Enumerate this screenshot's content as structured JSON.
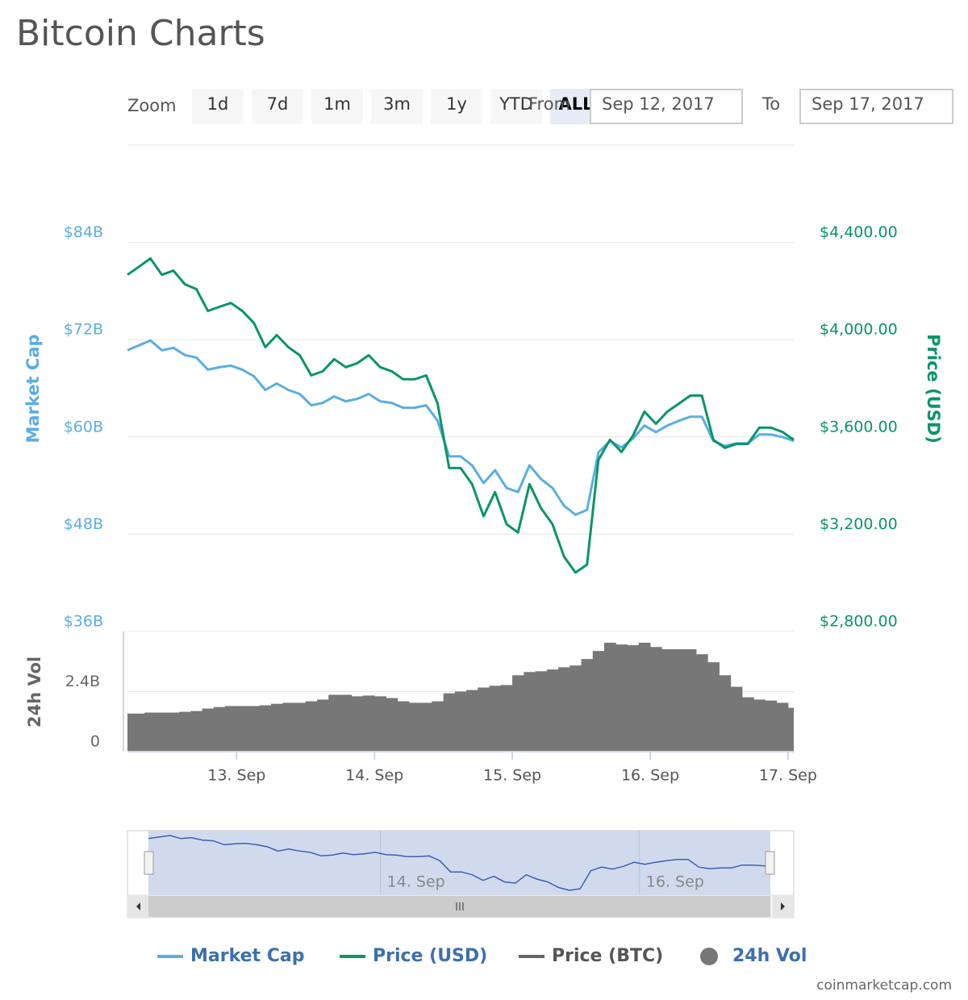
{
  "header": {
    "title": "Bitcoin Charts"
  },
  "controls": {
    "zoom_label": "Zoom",
    "zoom_buttons": [
      "1d",
      "7d",
      "1m",
      "3m",
      "1y",
      "YTD",
      "ALL"
    ],
    "selected": "ALL",
    "from_label": "From",
    "from_date": "Sep 12, 2017",
    "to_label": "To",
    "to_date": "Sep 17, 2017"
  },
  "chart_data": {
    "type": "line",
    "x": [
      "2017-09-12T05:00",
      "2017-09-12T07:00",
      "2017-09-12T09:00",
      "2017-09-12T11:00",
      "2017-09-12T13:00",
      "2017-09-12T15:00",
      "2017-09-12T17:00",
      "2017-09-12T19:00",
      "2017-09-12T21:00",
      "2017-09-12T23:00",
      "2017-09-13T01:00",
      "2017-09-13T03:00",
      "2017-09-13T05:00",
      "2017-09-13T07:00",
      "2017-09-13T09:00",
      "2017-09-13T11:00",
      "2017-09-13T13:00",
      "2017-09-13T15:00",
      "2017-09-13T17:00",
      "2017-09-13T19:00",
      "2017-09-13T21:00",
      "2017-09-13T23:00",
      "2017-09-14T01:00",
      "2017-09-14T03:00",
      "2017-09-14T05:00",
      "2017-09-14T07:00",
      "2017-09-14T09:00",
      "2017-09-14T11:00",
      "2017-09-14T13:00",
      "2017-09-14T15:00",
      "2017-09-14T17:00",
      "2017-09-14T19:00",
      "2017-09-14T21:00",
      "2017-09-14T23:00",
      "2017-09-15T01:00",
      "2017-09-15T03:00",
      "2017-09-15T05:00",
      "2017-09-15T07:00",
      "2017-09-15T09:00",
      "2017-09-15T11:00",
      "2017-09-15T13:00",
      "2017-09-15T15:00",
      "2017-09-15T17:00",
      "2017-09-15T19:00",
      "2017-09-15T21:00",
      "2017-09-15T23:00",
      "2017-09-16T01:00",
      "2017-09-16T03:00",
      "2017-09-16T05:00",
      "2017-09-16T07:00",
      "2017-09-16T09:00",
      "2017-09-16T11:00",
      "2017-09-16T13:00",
      "2017-09-16T15:00",
      "2017-09-16T17:00",
      "2017-09-16T19:00",
      "2017-09-16T21:00",
      "2017-09-16T23:00",
      "2017-09-17T01:00"
    ],
    "xlim": [
      "2017-09-12T05:00",
      "2017-09-17T01:00"
    ],
    "xticks": [
      {
        "value": "2017-09-13T00:00",
        "label": "13. Sep"
      },
      {
        "value": "2017-09-14T00:00",
        "label": "14. Sep"
      },
      {
        "value": "2017-09-15T00:00",
        "label": "15. Sep"
      },
      {
        "value": "2017-09-16T00:00",
        "label": "16. Sep"
      },
      {
        "value": "2017-09-17T00:00",
        "label": "17. Sep"
      }
    ],
    "ylabel": "Market Cap",
    "ylim": [
      36,
      96
    ],
    "yticks": [
      {
        "value": 36,
        "label": "$36B"
      },
      {
        "value": 48,
        "label": "$48B"
      },
      {
        "value": 60,
        "label": "$60B"
      },
      {
        "value": 72,
        "label": "$72B"
      },
      {
        "value": 84,
        "label": "$84B"
      }
    ],
    "y2label": "Price (USD)",
    "y2lim": [
      2800,
      4800
    ],
    "y2ticks": [
      {
        "value": 2800,
        "label": "$2,800.00"
      },
      {
        "value": 3200,
        "label": "$3,200.00"
      },
      {
        "value": 3600,
        "label": "$3,600.00"
      },
      {
        "value": 4000,
        "label": "$4,000.00"
      },
      {
        "value": 4400,
        "label": "$4,400.00"
      }
    ],
    "y3label": "24h Vol",
    "y3lim": [
      0,
      4.8
    ],
    "y3ticks": [
      0,
      {
        "value": 2.4,
        "label": "2.4B"
      }
    ],
    "grid": true,
    "legend": "bottom",
    "series": [
      {
        "name": "Market Cap",
        "color": "#5aaee2",
        "axis": "y",
        "values": [
          70.7,
          71.3,
          71.9,
          70.7,
          71.0,
          70.1,
          69.8,
          68.3,
          68.6,
          68.8,
          68.3,
          67.5,
          65.8,
          66.6,
          65.8,
          65.3,
          63.9,
          64.2,
          65.0,
          64.4,
          64.7,
          65.3,
          64.4,
          64.2,
          63.6,
          63.6,
          63.9,
          62.0,
          57.6,
          57.6,
          56.5,
          54.3,
          55.9,
          53.7,
          53.2,
          56.5,
          54.8,
          53.7,
          51.5,
          50.4,
          51.0,
          58.1,
          59.5,
          58.7,
          59.8,
          61.4,
          60.6,
          61.4,
          62.0,
          62.5,
          62.5,
          59.5,
          58.9,
          59.2,
          59.2,
          60.3,
          60.3,
          60.0,
          59.5
        ]
      },
      {
        "name": "Price (USD)",
        "color": "#0a9566",
        "axis": "y2",
        "values": [
          4267,
          4300,
          4334,
          4267,
          4284,
          4228,
          4208,
          4118,
          4135,
          4151,
          4118,
          4069,
          3969,
          4019,
          3969,
          3936,
          3853,
          3870,
          3920,
          3887,
          3903,
          3936,
          3887,
          3870,
          3837,
          3837,
          3853,
          3737,
          3472,
          3472,
          3406,
          3274,
          3373,
          3241,
          3207,
          3406,
          3307,
          3241,
          3108,
          3042,
          3075,
          3506,
          3588,
          3538,
          3605,
          3704,
          3654,
          3704,
          3737,
          3770,
          3770,
          3588,
          3555,
          3571,
          3571,
          3638,
          3638,
          3621,
          3588
        ]
      },
      {
        "name": "Price (BTC)",
        "color": "#666666",
        "visible": false
      },
      {
        "name": "24h Vol",
        "color": "#777777",
        "axis": "y3",
        "type": "column",
        "values": [
          1.52,
          1.52,
          1.56,
          1.56,
          1.56,
          1.59,
          1.62,
          1.72,
          1.78,
          1.82,
          1.82,
          1.82,
          1.85,
          1.91,
          1.95,
          1.95,
          2.01,
          2.08,
          2.27,
          2.27,
          2.21,
          2.24,
          2.21,
          2.14,
          2.01,
          1.95,
          1.95,
          2.01,
          2.33,
          2.4,
          2.46,
          2.56,
          2.63,
          2.66,
          3.05,
          3.18,
          3.21,
          3.28,
          3.37,
          3.44,
          3.7,
          4.02,
          4.35,
          4.28,
          4.25,
          4.35,
          4.18,
          4.09,
          4.09,
          4.09,
          3.89,
          3.57,
          3.05,
          2.59,
          2.17,
          2.08,
          2.04,
          1.95,
          1.75
        ]
      }
    ],
    "navigator": {
      "xticks": [
        {
          "value": "2017-09-14T00:00",
          "label": "14. Sep"
        },
        {
          "value": "2017-09-16T00:00",
          "label": "16. Sep"
        }
      ]
    }
  },
  "footer": {
    "credit": "coinmarketcap.com"
  }
}
